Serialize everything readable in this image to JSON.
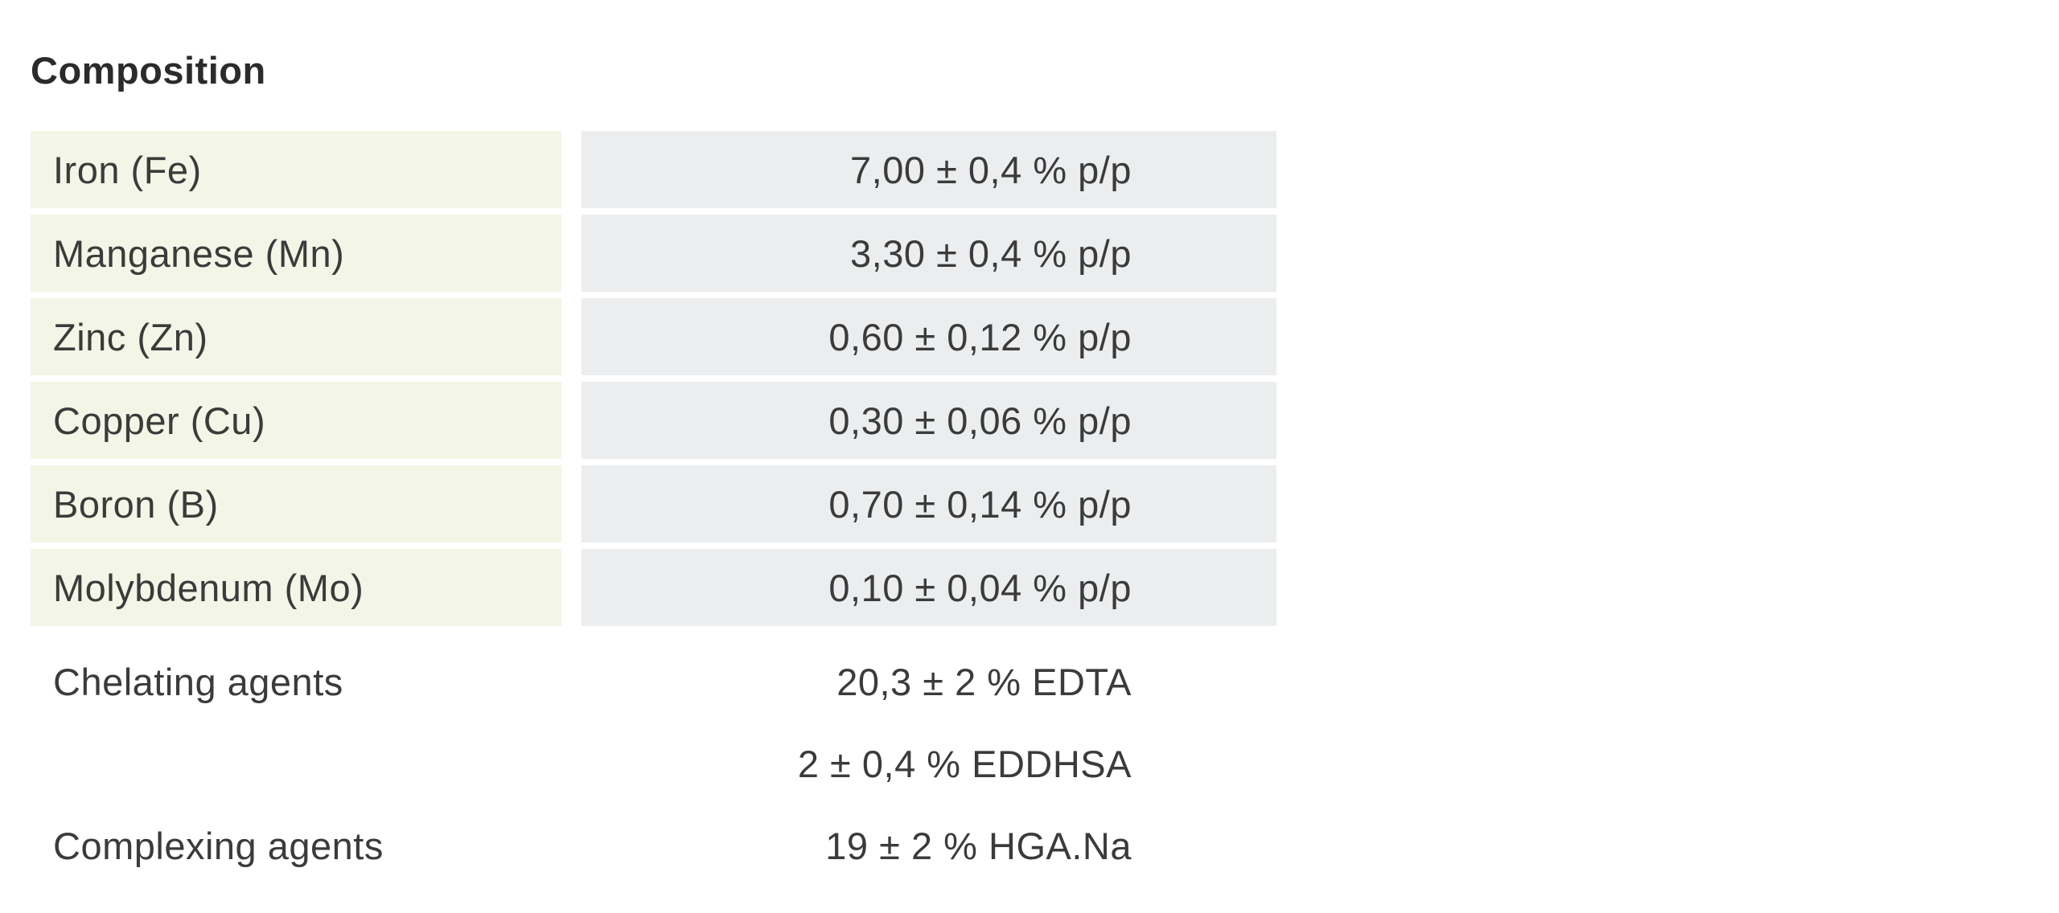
{
  "page": {
    "title": "Composition"
  },
  "colors": {
    "label_column_bg": "#f3f5e6",
    "value_column_bg": "#ebedee",
    "title_text": "#2b2b2b",
    "body_text": "#3b3b3b",
    "page_bg": "#ffffff"
  },
  "composition_table": {
    "rows": [
      {
        "label": "Iron (Fe)",
        "value": "7,00 ± 0,4 % p/p"
      },
      {
        "label": "Manganese (Mn)",
        "value": "3,30 ± 0,4 % p/p"
      },
      {
        "label": "Zinc (Zn)",
        "value": "0,60 ± 0,12 % p/p"
      },
      {
        "label": "Copper (Cu)",
        "value": "0,30 ± 0,06 % p/p"
      },
      {
        "label": "Boron (B)",
        "value": "0,70 ± 0,14 % p/p"
      },
      {
        "label": "Molybdenum (Mo)",
        "value": "0,10 ± 0,04 % p/p"
      }
    ]
  },
  "agents_table": {
    "rows": [
      {
        "label": "Chelating agents",
        "value": "20,3 ± 2 % EDTA"
      },
      {
        "label": "",
        "value": "2 ± 0,4 % EDDHSA"
      },
      {
        "label": "Complexing agents",
        "value": "19 ± 2 % HGA.Na"
      }
    ]
  }
}
